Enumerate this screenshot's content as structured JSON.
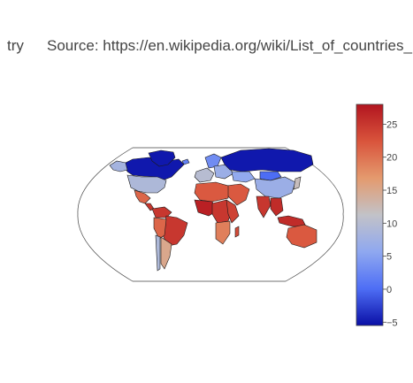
{
  "title": {
    "lead": "try",
    "source": "Source: https://en.wikipedia.org/wiki/List_of_countries_by"
  },
  "chart_data": {
    "type": "choropleth",
    "projection": "robinson",
    "colorscale": "RdBu reversed (blue = low, red = high)",
    "colorbar": {
      "min": -5.5,
      "max": 28,
      "ticks": [
        -5,
        0,
        5,
        10,
        15,
        20,
        25
      ],
      "tick_labels": [
        "−5",
        "0",
        "5",
        "10",
        "15",
        "20",
        "25"
      ],
      "colors": [
        "#0a0fa6",
        "#4e6ef5",
        "#8fa8f0",
        "#c2c2c8",
        "#e49a6e",
        "#d9543c",
        "#b2151f"
      ]
    },
    "regions": [
      {
        "name": "Canada",
        "value": -5
      },
      {
        "name": "Alaska",
        "value": 8
      },
      {
        "name": "Greenland",
        "value": -5
      },
      {
        "name": "United States",
        "value": 9
      },
      {
        "name": "Mexico",
        "value": 21
      },
      {
        "name": "Central America",
        "value": 25
      },
      {
        "name": "Colombia / Venezuela",
        "value": 25
      },
      {
        "name": "Brazil",
        "value": 25
      },
      {
        "name": "Peru / Bolivia",
        "value": 21
      },
      {
        "name": "Argentina",
        "value": 15
      },
      {
        "name": "Chile",
        "value": 9
      },
      {
        "name": "Iceland",
        "value": 2
      },
      {
        "name": "Scandinavia",
        "value": 3
      },
      {
        "name": "Western Europe",
        "value": 10
      },
      {
        "name": "Eastern Europe",
        "value": 7
      },
      {
        "name": "Russia",
        "value": -5
      },
      {
        "name": "Kazakhstan",
        "value": 6
      },
      {
        "name": "Mongolia",
        "value": 0
      },
      {
        "name": "China",
        "value": 7
      },
      {
        "name": "Middle East",
        "value": 22
      },
      {
        "name": "North Africa",
        "value": 22
      },
      {
        "name": "West Africa",
        "value": 27
      },
      {
        "name": "Central Africa",
        "value": 25
      },
      {
        "name": "East Africa",
        "value": 24
      },
      {
        "name": "Southern Africa",
        "value": 19
      },
      {
        "name": "Madagascar",
        "value": 23
      },
      {
        "name": "India",
        "value": 25
      },
      {
        "name": "Southeast Asia",
        "value": 26
      },
      {
        "name": "Japan",
        "value": 12
      },
      {
        "name": "Indonesia",
        "value": 26
      },
      {
        "name": "Australia",
        "value": 22
      }
    ]
  }
}
